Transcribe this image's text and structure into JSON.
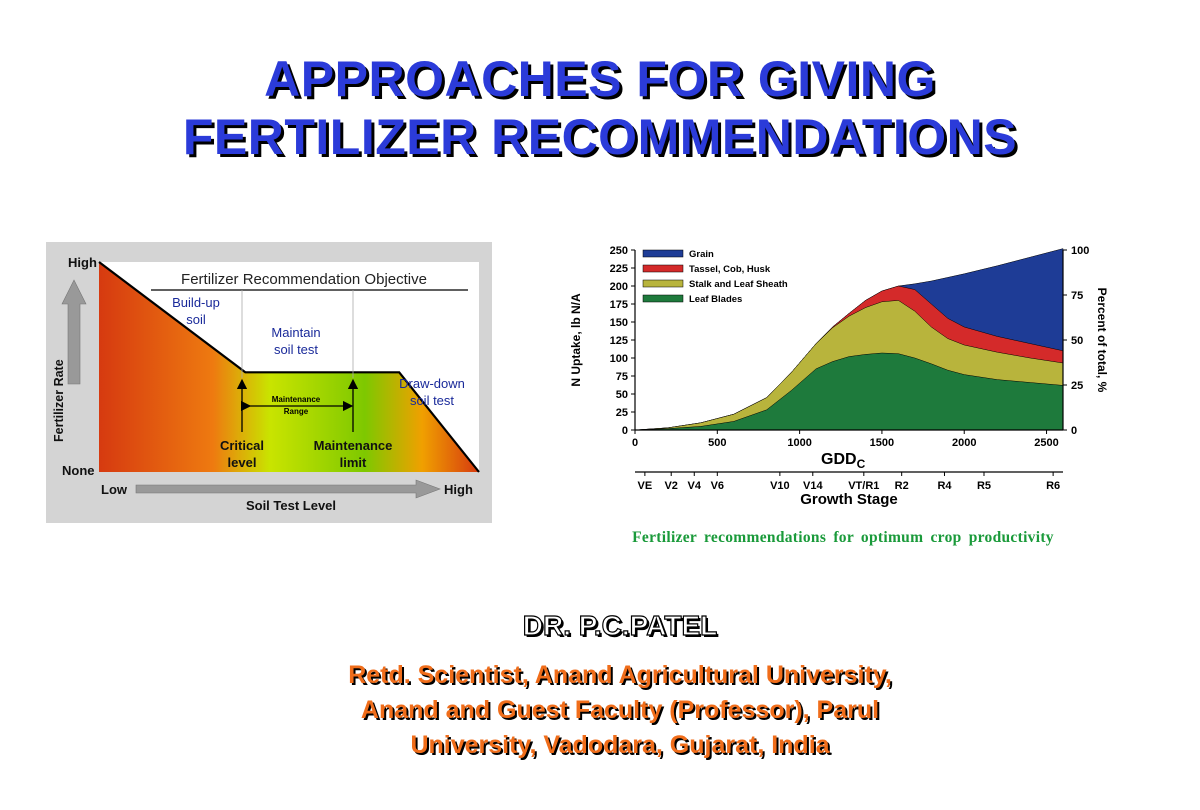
{
  "slide": {
    "title_line1": "APPROACHES  FOR  GIVING",
    "title_line2": "FERTILIZER RECOMMENDATIONS",
    "caption": "Fertilizer recommendations for optimum crop productivity",
    "author": "DR. P.C.PATEL",
    "affiliation_line1": "Retd. Scientist, Anand Agricultural University,",
    "affiliation_line2": "Anand and  Guest Faculty (Professor), Parul",
    "affiliation_line3": "University, Vadodara, Gujarat, India"
  },
  "colors": {
    "title": "#2b3bd9",
    "caption": "#1a9a3a",
    "affiliation": "#f06d1a"
  },
  "chart_data": [
    {
      "type": "line",
      "title": "Fertilizer Recommendation Objective",
      "xlabel": "Soil Test Level",
      "ylabel": "Fertilizer Rate",
      "x_ticks": [
        "Low",
        "High"
      ],
      "y_ticks": [
        "None",
        "High"
      ],
      "zones": [
        {
          "label_line1": "Build-up",
          "label_line2": "soil"
        },
        {
          "label_line1": "Maintain",
          "label_line2": "soil test"
        },
        {
          "label_line1": "Draw-down",
          "label_line2": "soil test"
        }
      ],
      "annotations": {
        "range_line1": "Maintenance",
        "range_line2": "Range",
        "critical_line1": "Critical",
        "critical_line2": "level",
        "limit_line1": "Maintenance",
        "limit_line2": "limit"
      },
      "series": [
        {
          "x": [
            0,
            0.385,
            0.79,
            1
          ],
          "y": [
            1,
            0.475,
            0.475,
            0
          ]
        }
      ],
      "colors": {
        "high": "#d63a10",
        "mid": "#f0a000",
        "maintenance": "#7ec800",
        "low": "#c9e400"
      }
    },
    {
      "type": "area",
      "xlabel": "GDD",
      "xlabel_sub": "C",
      "ylabel": "N Uptake, lb N/A",
      "y2label": "Percent of total, %",
      "stagelabel": "Growth Stage",
      "xlim": [
        0,
        2600
      ],
      "ylim": [
        0,
        250
      ],
      "y2lim": [
        0,
        100
      ],
      "x_ticks": [
        0,
        500,
        1000,
        1500,
        2000,
        2500
      ],
      "y_ticks": [
        0,
        25,
        50,
        75,
        100,
        125,
        150,
        175,
        200,
        225,
        250
      ],
      "y2_ticks": [
        0,
        25,
        50,
        75,
        100
      ],
      "legend_position": "top-left",
      "stages": [
        {
          "label": "VE",
          "x": 60
        },
        {
          "label": "V2",
          "x": 220
        },
        {
          "label": "V4",
          "x": 360
        },
        {
          "label": "V6",
          "x": 500
        },
        {
          "label": "V10",
          "x": 880
        },
        {
          "label": "V14",
          "x": 1080
        },
        {
          "label": "VT/R1",
          "x": 1390
        },
        {
          "label": "R2",
          "x": 1620
        },
        {
          "label": "R4",
          "x": 1880
        },
        {
          "label": "R5",
          "x": 2120
        },
        {
          "label": "R6",
          "x": 2540
        }
      ],
      "x": [
        0,
        200,
        400,
        600,
        800,
        950,
        1100,
        1200,
        1300,
        1400,
        1500,
        1600,
        1700,
        1800,
        1900,
        2000,
        2200,
        2400,
        2600
      ],
      "series": [
        {
          "name": "Leaf Blades",
          "color": "#1e7a3c",
          "values": [
            0,
            2,
            5,
            12,
            28,
            55,
            85,
            95,
            102,
            105,
            107,
            106,
            100,
            92,
            83,
            77,
            70,
            66,
            62
          ]
        },
        {
          "name": "Stalk and Leaf Sheath",
          "color": "#b8b43c",
          "values": [
            0,
            3,
            10,
            22,
            45,
            80,
            120,
            142,
            158,
            170,
            178,
            180,
            165,
            143,
            127,
            118,
            108,
            100,
            93
          ]
        },
        {
          "name": "Tassel, Cob, Husk",
          "color": "#d42a2a",
          "values": [
            0,
            3,
            10,
            22,
            45,
            80,
            120,
            143,
            162,
            180,
            193,
            200,
            195,
            175,
            155,
            143,
            130,
            120,
            110
          ]
        },
        {
          "name": "Grain",
          "color": "#1e3c96",
          "values": [
            0,
            3,
            10,
            22,
            45,
            80,
            120,
            143,
            162,
            180,
            193,
            200,
            203,
            207,
            212,
            217,
            228,
            240,
            252
          ]
        }
      ]
    }
  ]
}
